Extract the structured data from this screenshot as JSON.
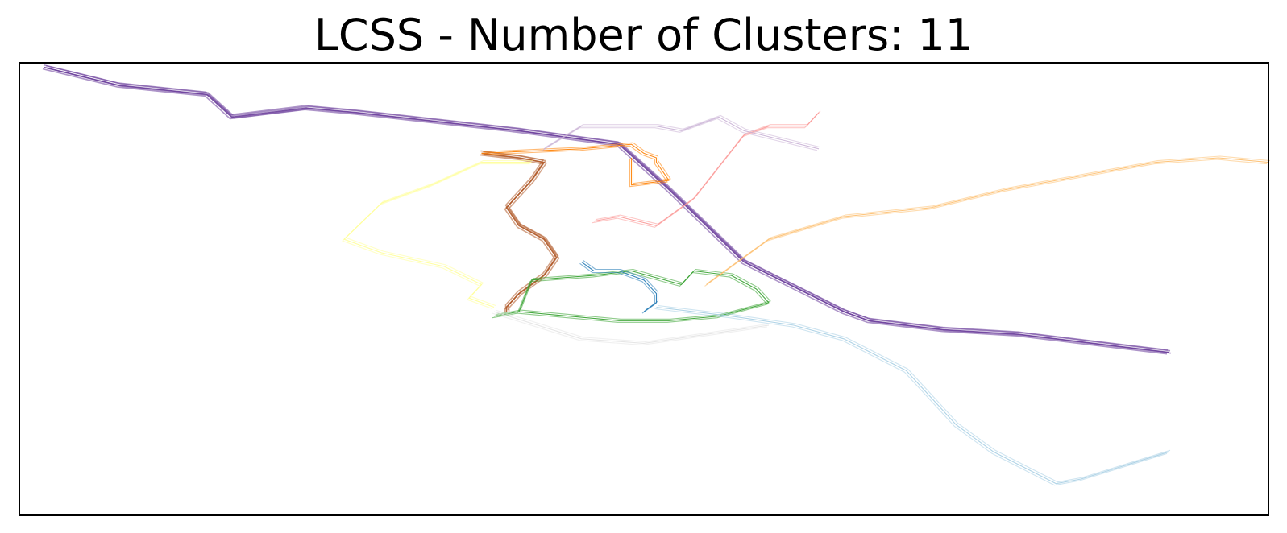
{
  "chart_data": {
    "type": "line",
    "title": "LCSS - Number of Clusters: 11",
    "xlabel": "",
    "ylabel": "",
    "axis_ticks": "hidden",
    "grid": false,
    "legend": "none",
    "series": [
      {
        "cluster": 1,
        "color": "#6a3d9a",
        "values": [
          [
            2,
            99
          ],
          [
            8,
            95
          ],
          [
            15,
            93
          ],
          [
            17,
            88
          ],
          [
            23,
            90
          ],
          [
            27,
            89
          ],
          [
            40,
            85
          ],
          [
            48,
            82
          ],
          [
            52,
            72
          ],
          [
            58,
            56
          ],
          [
            66,
            45
          ],
          [
            68,
            43
          ],
          [
            74,
            41
          ],
          [
            80,
            40
          ],
          [
            92,
            36
          ]
        ]
      },
      {
        "cluster": 2,
        "color": "#b15928",
        "values": [
          [
            37,
            80
          ],
          [
            40,
            79
          ],
          [
            42,
            78
          ],
          [
            41,
            74
          ],
          [
            40,
            71
          ],
          [
            39,
            68
          ],
          [
            40,
            64
          ],
          [
            42,
            61
          ],
          [
            43,
            57
          ],
          [
            42,
            53
          ],
          [
            40,
            49
          ],
          [
            39,
            46
          ],
          [
            39,
            45
          ]
        ]
      },
      {
        "cluster": 3,
        "color": "#33a02c",
        "values": [
          [
            38,
            44
          ],
          [
            40,
            45
          ],
          [
            41,
            52
          ],
          [
            46,
            53
          ],
          [
            49,
            54
          ],
          [
            53,
            51
          ],
          [
            54,
            54
          ],
          [
            57,
            53
          ],
          [
            59,
            50
          ],
          [
            60,
            47
          ],
          [
            56,
            44
          ],
          [
            52,
            43
          ],
          [
            48,
            43
          ],
          [
            44,
            44
          ],
          [
            40,
            45
          ]
        ]
      },
      {
        "cluster": 4,
        "color": "#1f78b4",
        "values": [
          [
            45,
            56
          ],
          [
            46,
            54
          ],
          [
            48,
            54
          ],
          [
            49,
            53
          ],
          [
            50,
            52
          ],
          [
            51,
            49
          ],
          [
            51,
            47
          ],
          [
            50,
            45
          ]
        ]
      },
      {
        "cluster": 5,
        "color": "#a6cee3",
        "values": [
          [
            51,
            46
          ],
          [
            57,
            44
          ],
          [
            62,
            42
          ],
          [
            66,
            39
          ],
          [
            71,
            32
          ],
          [
            75,
            20
          ],
          [
            78,
            14
          ],
          [
            83,
            7
          ],
          [
            85,
            8
          ],
          [
            92,
            14
          ]
        ]
      },
      {
        "cluster": 6,
        "color": "#fdbf6f",
        "values": [
          [
            55,
            51
          ],
          [
            57,
            55
          ],
          [
            60,
            61
          ],
          [
            66,
            66
          ],
          [
            73,
            68
          ],
          [
            79,
            72
          ],
          [
            85,
            75
          ],
          [
            91,
            78
          ],
          [
            96,
            79
          ],
          [
            100,
            78
          ]
        ]
      },
      {
        "cluster": 7,
        "color": "#ff7f00",
        "values": [
          [
            37,
            80
          ],
          [
            45,
            81
          ],
          [
            49,
            82
          ],
          [
            50,
            80
          ],
          [
            51,
            79
          ],
          [
            51,
            78
          ],
          [
            52,
            74
          ],
          [
            49,
            73
          ],
          [
            49,
            79
          ]
        ]
      },
      {
        "cluster": 8,
        "color": "#fb9a99",
        "values": [
          [
            46,
            65
          ],
          [
            48,
            66
          ],
          [
            51,
            64
          ],
          [
            54,
            70
          ],
          [
            56,
            77
          ],
          [
            58,
            84
          ],
          [
            60,
            86
          ],
          [
            63,
            86
          ],
          [
            64,
            89
          ]
        ]
      },
      {
        "cluster": 9,
        "color": "#cab2d6",
        "values": [
          [
            42,
            81
          ],
          [
            45,
            86
          ],
          [
            48,
            86
          ],
          [
            51,
            86
          ],
          [
            53,
            85
          ],
          [
            56,
            88
          ],
          [
            58,
            85
          ],
          [
            61,
            83
          ],
          [
            64,
            81
          ]
        ]
      },
      {
        "cluster": 10,
        "color": "#ffff99",
        "values": [
          [
            41,
            78
          ],
          [
            37,
            78
          ],
          [
            33,
            73
          ],
          [
            29,
            69
          ],
          [
            26,
            61
          ],
          [
            29,
            58
          ],
          [
            34,
            55
          ],
          [
            37,
            51
          ],
          [
            36,
            48
          ],
          [
            38,
            46
          ]
        ]
      },
      {
        "cluster": 11,
        "color": "#e3e3e3",
        "values": [
          [
            38,
            45
          ],
          [
            45,
            39
          ],
          [
            50,
            38
          ],
          [
            55,
            40
          ],
          [
            60,
            42
          ]
        ]
      }
    ]
  }
}
